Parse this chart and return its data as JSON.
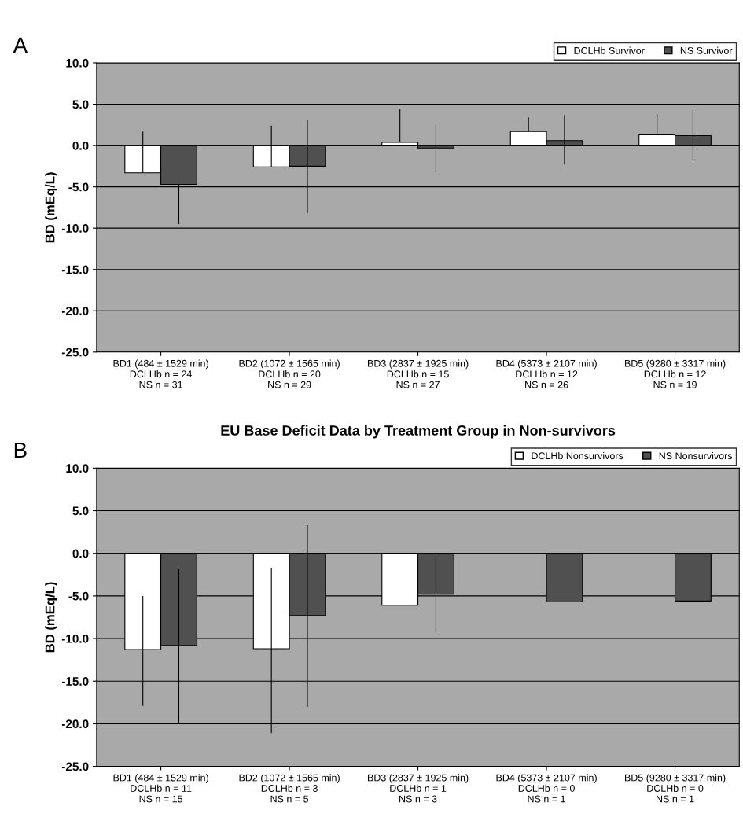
{
  "chart_data": [
    {
      "type": "bar",
      "annotations": [
        "A"
      ],
      "ylabel": "BD (mEq/L)",
      "categories": [
        "BD1 (484 ± 1529 min)\nDCLHb n = 24\nNS n = 31",
        "BD2 (1072 ± 1565 min)\nDCLHb n = 20\nNS n = 29",
        "BD3 (2837 ± 1925 min)\nDCLHb n = 15\nNS n = 27",
        "BD4 (5373 ± 2107 min)\nDCLHb n = 12\nNS n = 26",
        "BD5 (9280 ± 3317 min)\nDCLHb n = 12\nNS n = 19"
      ],
      "series": [
        {
          "name": "DCLHb Survivor",
          "color": "#ffffff",
          "values": [
            -3.3,
            -2.6,
            0.4,
            1.7,
            1.3
          ],
          "errors": [
            [
              -3.3,
              1.7
            ],
            [
              -2.6,
              2.4
            ],
            [
              0.4,
              4.4
            ],
            [
              1.7,
              3.4
            ],
            [
              1.3,
              3.8
            ]
          ]
        },
        {
          "name": "NS Survivor",
          "color": "#505050",
          "values": [
            -4.7,
            -2.5,
            -0.3,
            0.6,
            1.2
          ],
          "errors": [
            [
              -9.5,
              -4.7
            ],
            [
              -8.2,
              3.1
            ],
            [
              -3.3,
              2.4
            ],
            [
              -2.3,
              3.7
            ],
            [
              -1.7,
              4.3
            ]
          ]
        }
      ],
      "ylim": [
        -25,
        10
      ],
      "yticks": [
        {
          "value": 10,
          "label": "10.0"
        },
        {
          "value": 5,
          "label": "5.0"
        },
        {
          "value": 0,
          "label": "0.0"
        },
        {
          "value": -5,
          "label": "-5.0"
        },
        {
          "value": -10,
          "label": "-10.0"
        },
        {
          "value": -15,
          "label": "-15.0"
        },
        {
          "value": -20,
          "label": "-20.0"
        },
        {
          "value": -25,
          "label": "-25.0"
        }
      ],
      "grid": "y",
      "legend": "top right"
    },
    {
      "type": "bar",
      "title": "EU Base Deficit Data by Treatment Group in Non-survivors",
      "annotations": [
        "B"
      ],
      "ylabel": "BD (mEq/L)",
      "categories": [
        "BD1 (484 ± 1529 min)\nDCLHb n = 11\nNS n = 15",
        "BD2 (1072 ± 1565 min)\nDCLHb n = 3\nNS n = 5",
        "BD3 (2837 ± 1925 min)\nDCLHb n = 1\nNS n = 3",
        "BD4 (5373 ± 2107 min)\nDCLHb n = 0\nNS n = 1",
        "BD5 (9280 ± 3317 min)\nDCLHb n = 0\nNS n = 1"
      ],
      "series": [
        {
          "name": "DCLHb Nonsurvivors",
          "color": "#ffffff",
          "values": [
            -11.3,
            -11.2,
            -6.1,
            null,
            null
          ],
          "errors": [
            [
              -17.9,
              -5.0
            ],
            [
              -21.1,
              -1.7
            ],
            null,
            null,
            null
          ]
        },
        {
          "name": "NS Nonsurvivors",
          "color": "#505050",
          "values": [
            -10.8,
            -7.3,
            -4.8,
            -5.7,
            -5.6
          ],
          "errors": [
            [
              -20.0,
              -1.8
            ],
            [
              -18.0,
              3.3
            ],
            [
              -9.3,
              -0.3
            ],
            null,
            null
          ]
        }
      ],
      "ylim": [
        -25,
        10
      ],
      "yticks": [
        {
          "value": 10,
          "label": "10.0"
        },
        {
          "value": 5,
          "label": "5.0"
        },
        {
          "value": 0,
          "label": "0.0"
        },
        {
          "value": -5,
          "label": "-5.0"
        },
        {
          "value": -10,
          "label": "-10.0"
        },
        {
          "value": -15,
          "label": "-15.0"
        },
        {
          "value": -20,
          "label": "-20.0"
        },
        {
          "value": -25,
          "label": "-25.0"
        }
      ],
      "grid": "y",
      "legend": "top right"
    }
  ]
}
